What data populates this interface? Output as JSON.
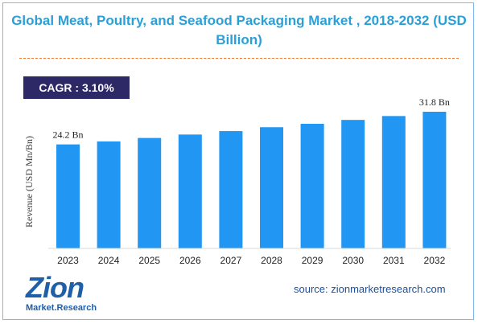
{
  "title": "Global Meat, Poultry, and Seafood Packaging Market , 2018-2032 (USD Billion)",
  "cagr_label": "CAGR : 3.10%",
  "source": "source: zionmarketresearch.com",
  "logo": {
    "main": "Zion",
    "sub": "Market.Research"
  },
  "colors": {
    "bar": "#2196f3",
    "title": "#2aa0d8",
    "cagr_bg": "#2d2966",
    "divider": "#f07a2a"
  },
  "chart_data": {
    "type": "bar",
    "categories": [
      "2023",
      "2024",
      "2025",
      "2026",
      "2027",
      "2028",
      "2029",
      "2030",
      "2031",
      "2032"
    ],
    "values": [
      24.2,
      24.9,
      25.7,
      26.5,
      27.3,
      28.2,
      29.0,
      29.9,
      30.8,
      31.8
    ],
    "data_labels": [
      {
        "index": 0,
        "text": "24.2 Bn"
      },
      {
        "index": 9,
        "text": "31.8 Bn"
      }
    ],
    "ylabel": "Revenue (USD Mn/Bn)",
    "ylim": [
      0,
      31.8
    ],
    "grid": false
  }
}
